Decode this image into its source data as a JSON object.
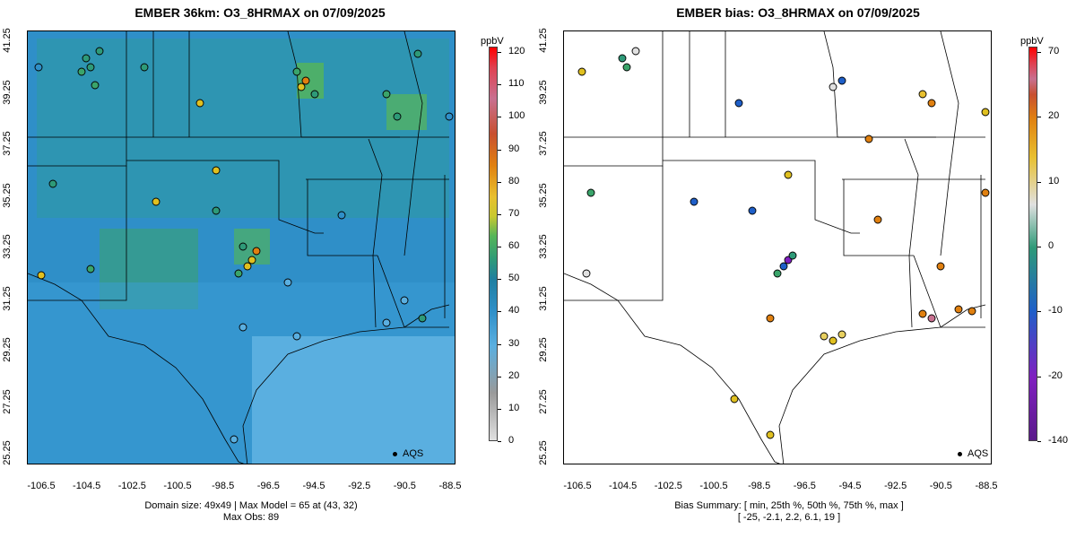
{
  "left": {
    "title": "EMBER 36km: O3_8HRMAX on 07/09/2025",
    "colorbar_label": "ppbV",
    "colorbar_ticks": [
      "0",
      "10",
      "20",
      "30",
      "40",
      "50",
      "60",
      "70",
      "80",
      "90",
      "100",
      "110",
      "120"
    ],
    "footer_line1": "Domain size: 49x49 | Max Model = 65 at (43, 32)",
    "footer_line2": "Max Obs: 89",
    "legend_label": "AQS"
  },
  "right": {
    "title": "EMBER bias: O3_8HRMAX on 07/09/2025",
    "colorbar_label": "ppbV",
    "colorbar_ticks": [
      "-140",
      "-20",
      "-10",
      "0",
      "10",
      "20",
      "70"
    ],
    "footer_line1": "Bias Summary: [ min, 25th %, 50th %, 75th %, max ]",
    "footer_line2": "[ -25,   -2.1,   2.2,   6.1,   19 ]",
    "legend_label": "AQS"
  },
  "axes": {
    "lat_ticks": [
      "25.25",
      "27.25",
      "29.25",
      "31.25",
      "33.25",
      "35.25",
      "37.25",
      "39.25",
      "41.25"
    ],
    "lon_ticks": [
      "-106.5",
      "-104.5",
      "-102.5",
      "-100.5",
      "-98.5",
      "-96.5",
      "-94.5",
      "-92.5",
      "-90.5",
      "-88.5"
    ]
  },
  "colors": {
    "model_background": "#2f8fc8",
    "ocean": "#5aafe0",
    "border": "#000000"
  }
}
